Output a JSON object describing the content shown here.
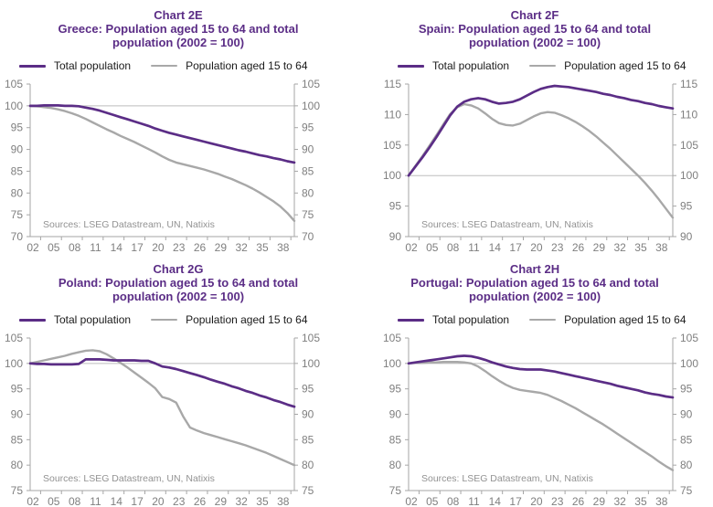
{
  "page": {
    "background": "#ffffff"
  },
  "colors": {
    "accent_purple": "#5b2d86",
    "series_gray": "#a8a8a8",
    "axis_gray": "#a6a6a6",
    "axis_label_gray": "#7f7f7f",
    "reference_line_gray": "#bdbdbd"
  },
  "chart_data": [
    {
      "type": "line",
      "chart_label": "Chart 2E",
      "title": "Greece: Population aged 15 to 64 and total population (2002 = 100)",
      "title_lines": [
        "Chart 2E",
        "Greece: Population aged 15 to 64 and total",
        "population (2002 = 100)"
      ],
      "legend": [
        "Total population",
        "Population aged 15 to 64"
      ],
      "legend_position": "top",
      "grid": "reference line at 100 only",
      "x_start": 2002,
      "x_end": 2040,
      "x_step": 1,
      "x_tick_labels": [
        "02",
        "05",
        "08",
        "11",
        "14",
        "17",
        "20",
        "23",
        "26",
        "29",
        "32",
        "35",
        "38"
      ],
      "ylim": [
        70,
        105
      ],
      "y_ticks": [
        70,
        75,
        80,
        85,
        90,
        95,
        100,
        105
      ],
      "reference_line": 100,
      "series": [
        {
          "name": "Total population",
          "color": "#5b2d86",
          "values": [
            100,
            100,
            100.1,
            100.1,
            100.1,
            100,
            100,
            99.9,
            99.6,
            99.3,
            98.9,
            98.4,
            97.9,
            97.4,
            96.9,
            96.4,
            95.9,
            95.4,
            94.8,
            94.3,
            93.8,
            93.4,
            93,
            92.6,
            92.2,
            91.8,
            91.4,
            91,
            90.6,
            90.2,
            89.8,
            89.5,
            89.1,
            88.7,
            88.4,
            88,
            87.7,
            87.3,
            87
          ]
        },
        {
          "name": "Population aged 15 to 64",
          "color": "#a8a8a8",
          "values": [
            100,
            99.9,
            99.7,
            99.5,
            99.2,
            98.8,
            98.3,
            97.7,
            97,
            96.2,
            95.4,
            94.6,
            93.9,
            93.1,
            92.4,
            91.7,
            90.9,
            90.1,
            89.3,
            88.4,
            87.6,
            87,
            86.6,
            86.2,
            85.8,
            85.4,
            84.9,
            84.4,
            83.8,
            83.2,
            82.5,
            81.8,
            81,
            80.1,
            79.1,
            78.1,
            76.9,
            75.4,
            73.6
          ]
        }
      ],
      "source": "Sources: LSEG Datastream, UN, Natixis"
    },
    {
      "type": "line",
      "chart_label": "Chart 2F",
      "title": "Spain: Population aged 15 to 64 and total population (2002 = 100)",
      "title_lines": [
        "Chart 2F",
        "Spain: Population aged 15 to 64 and total",
        "population (2002 = 100)"
      ],
      "legend": [
        "Total population",
        "Population aged 15 to 64"
      ],
      "legend_position": "top",
      "grid": "reference line at 100 only",
      "x_start": 2002,
      "x_end": 2040,
      "x_step": 1,
      "x_tick_labels": [
        "02",
        "05",
        "08",
        "11",
        "14",
        "17",
        "20",
        "23",
        "26",
        "29",
        "32",
        "35",
        "38"
      ],
      "ylim": [
        90,
        115
      ],
      "y_ticks": [
        90,
        95,
        100,
        105,
        110,
        115
      ],
      "reference_line": 100,
      "series": [
        {
          "name": "Total population",
          "color": "#5b2d86",
          "values": [
            100,
            101.5,
            103,
            104.6,
            106.3,
            108.1,
            109.9,
            111.3,
            112.1,
            112.5,
            112.7,
            112.5,
            112.1,
            111.8,
            111.9,
            112.1,
            112.5,
            113.1,
            113.7,
            114.2,
            114.5,
            114.7,
            114.6,
            114.5,
            114.3,
            114.1,
            113.9,
            113.7,
            113.4,
            113.2,
            112.9,
            112.7,
            112.4,
            112.2,
            111.9,
            111.7,
            111.4,
            111.2,
            111
          ]
        },
        {
          "name": "Population aged 15 to 64",
          "color": "#a8a8a8",
          "values": [
            100,
            101.6,
            103.2,
            104.9,
            106.6,
            108.4,
            110.1,
            111.2,
            111.7,
            111.5,
            111,
            110.2,
            109.3,
            108.6,
            108.3,
            108.2,
            108.5,
            109.1,
            109.7,
            110.2,
            110.4,
            110.3,
            109.9,
            109.4,
            108.8,
            108.1,
            107.3,
            106.4,
            105.4,
            104.4,
            103.3,
            102.2,
            101.1,
            100,
            98.8,
            97.5,
            96.1,
            94.6,
            93.1
          ]
        }
      ],
      "source": "Sources: LSEG Datastream, UN, Natixis"
    },
    {
      "type": "line",
      "chart_label": "Chart 2G",
      "title": "Poland: Population aged 15 to 64 and total population (2002 = 100)",
      "title_lines": [
        "Chart 2G",
        "Poland: Population aged 15 to 64 and total",
        "population (2002 = 100)"
      ],
      "legend": [
        "Total population",
        "Population aged 15 to 64"
      ],
      "legend_position": "top",
      "grid": "reference line at 100 only",
      "x_start": 2002,
      "x_end": 2040,
      "x_step": 1,
      "x_tick_labels": [
        "02",
        "05",
        "08",
        "11",
        "14",
        "17",
        "20",
        "23",
        "26",
        "29",
        "32",
        "35",
        "38"
      ],
      "ylim": [
        75,
        105
      ],
      "y_ticks": [
        75,
        80,
        85,
        90,
        95,
        100,
        105
      ],
      "reference_line": 100,
      "series": [
        {
          "name": "Total population",
          "color": "#5b2d86",
          "values": [
            100,
            99.9,
            99.9,
            99.8,
            99.8,
            99.8,
            99.8,
            99.9,
            100.8,
            100.8,
            100.8,
            100.7,
            100.6,
            100.6,
            100.6,
            100.6,
            100.5,
            100.5,
            100,
            99.4,
            99.2,
            98.9,
            98.5,
            98.1,
            97.7,
            97.3,
            96.8,
            96.4,
            96,
            95.5,
            95.1,
            94.6,
            94.2,
            93.7,
            93.3,
            92.8,
            92.4,
            91.9,
            91.5
          ]
        },
        {
          "name": "Population aged 15 to 64",
          "color": "#a8a8a8",
          "values": [
            100,
            100.3,
            100.6,
            100.9,
            101.2,
            101.5,
            101.9,
            102.2,
            102.5,
            102.6,
            102.4,
            101.8,
            101,
            100.1,
            99.2,
            98.2,
            97.2,
            96.2,
            95.1,
            93.4,
            93,
            92.3,
            89.6,
            87.4,
            86.8,
            86.3,
            85.9,
            85.5,
            85.1,
            84.7,
            84.3,
            83.9,
            83.4,
            82.9,
            82.4,
            81.8,
            81.2,
            80.6,
            80
          ]
        }
      ],
      "source": "Sources: LSEG Datastream, UN, Natixis"
    },
    {
      "type": "line",
      "chart_label": "Chart 2H",
      "title": "Portugal: Population aged 15 to 64 and total population (2002 = 100)",
      "title_lines": [
        "Chart 2H",
        "Portugal: Population aged 15 to 64 and total",
        "population (2002 = 100)"
      ],
      "legend": [
        "Total population",
        "Population aged 15 to 64"
      ],
      "legend_position": "top",
      "grid": "reference line at 100 only",
      "x_start": 2002,
      "x_end": 2040,
      "x_step": 1,
      "x_tick_labels": [
        "02",
        "05",
        "08",
        "11",
        "14",
        "17",
        "20",
        "23",
        "26",
        "29",
        "32",
        "35",
        "38"
      ],
      "ylim": [
        75,
        105
      ],
      "y_ticks": [
        75,
        80,
        85,
        90,
        95,
        100,
        105
      ],
      "reference_line": 100,
      "series": [
        {
          "name": "Total population",
          "color": "#5b2d86",
          "values": [
            100,
            100.2,
            100.4,
            100.6,
            100.8,
            101,
            101.2,
            101.4,
            101.5,
            101.4,
            101.1,
            100.7,
            100.2,
            99.8,
            99.4,
            99.1,
            98.9,
            98.8,
            98.8,
            98.8,
            98.6,
            98.4,
            98.1,
            97.8,
            97.5,
            97.2,
            96.9,
            96.6,
            96.3,
            96,
            95.6,
            95.3,
            95,
            94.7,
            94.3,
            94,
            93.8,
            93.5,
            93.3
          ]
        },
        {
          "name": "Population aged 15 to 64",
          "color": "#a8a8a8",
          "values": [
            100,
            100.1,
            100.1,
            100.2,
            100.2,
            100.3,
            100.3,
            100.3,
            100.2,
            100,
            99.4,
            98.5,
            97.5,
            96.6,
            95.8,
            95.2,
            94.8,
            94.6,
            94.4,
            94.2,
            93.8,
            93.2,
            92.6,
            91.9,
            91.2,
            90.4,
            89.6,
            88.8,
            88,
            87.1,
            86.2,
            85.3,
            84.4,
            83.5,
            82.6,
            81.7,
            80.7,
            79.8,
            79
          ]
        }
      ],
      "source": "Sources: LSEG Datastream, UN, Natixis"
    }
  ]
}
